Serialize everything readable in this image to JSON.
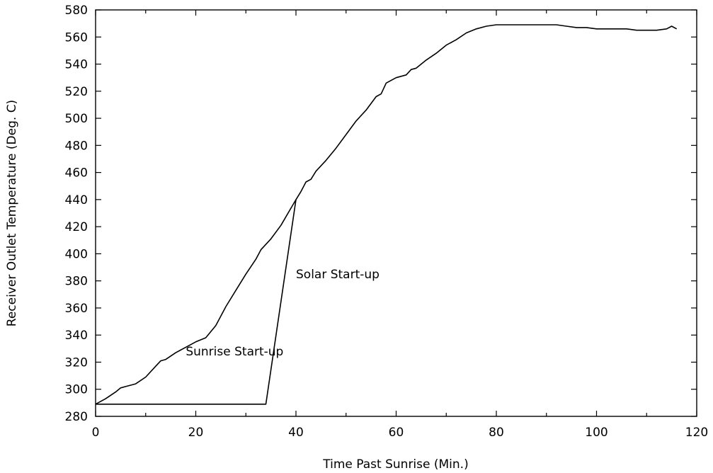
{
  "chart_data": {
    "type": "line",
    "title": "",
    "xlabel": "Time Past Sunrise (Min.)",
    "ylabel": "Receiver Outlet Temperature (Deg. C)",
    "xlim": [
      0,
      120
    ],
    "ylim": [
      280,
      580
    ],
    "x_ticks": [
      0,
      20,
      40,
      60,
      80,
      100,
      120
    ],
    "y_ticks": [
      280,
      300,
      320,
      340,
      360,
      380,
      400,
      420,
      440,
      460,
      480,
      500,
      520,
      540,
      560,
      580
    ],
    "grid": false,
    "legend": "none",
    "series": [
      {
        "x": [
          0,
          2,
          4,
          5,
          6,
          8,
          10,
          12,
          13,
          14,
          16,
          18,
          20,
          22,
          24,
          26,
          28,
          30,
          32,
          33,
          35,
          37,
          40,
          41,
          42,
          43,
          44,
          46,
          48,
          50,
          52,
          54,
          56,
          57,
          58,
          60,
          62,
          63,
          64,
          66,
          68,
          70,
          72,
          74,
          76,
          78,
          80,
          82,
          84,
          86,
          88,
          90,
          92,
          94,
          96,
          98,
          100,
          102,
          104,
          106,
          108,
          110,
          112,
          114,
          115,
          116
        ],
        "values": [
          289,
          293,
          298,
          301,
          302,
          304,
          309,
          317,
          321,
          322,
          327,
          331,
          335,
          338,
          347,
          361,
          373,
          385,
          396,
          403,
          411,
          421,
          440,
          446,
          453,
          455,
          461,
          469,
          478,
          488,
          498,
          506,
          516,
          518,
          526,
          530,
          532,
          536,
          537,
          543,
          548,
          554,
          558,
          563,
          566,
          568,
          569,
          569,
          569,
          569,
          569,
          569,
          569,
          568,
          567,
          567,
          566,
          566,
          566,
          566,
          565,
          565,
          565,
          566,
          568,
          566
        ]
      },
      {
        "x": [
          0,
          34,
          40
        ],
        "values": [
          289,
          289,
          440
        ]
      }
    ],
    "annotations": [
      {
        "text": "Sunrise Start-up",
        "x": 18,
        "y": 325
      },
      {
        "text": "Solar Start-up",
        "x": 40,
        "y": 382
      }
    ],
    "colors": {
      "line": "#000000",
      "axis": "#000000"
    }
  }
}
